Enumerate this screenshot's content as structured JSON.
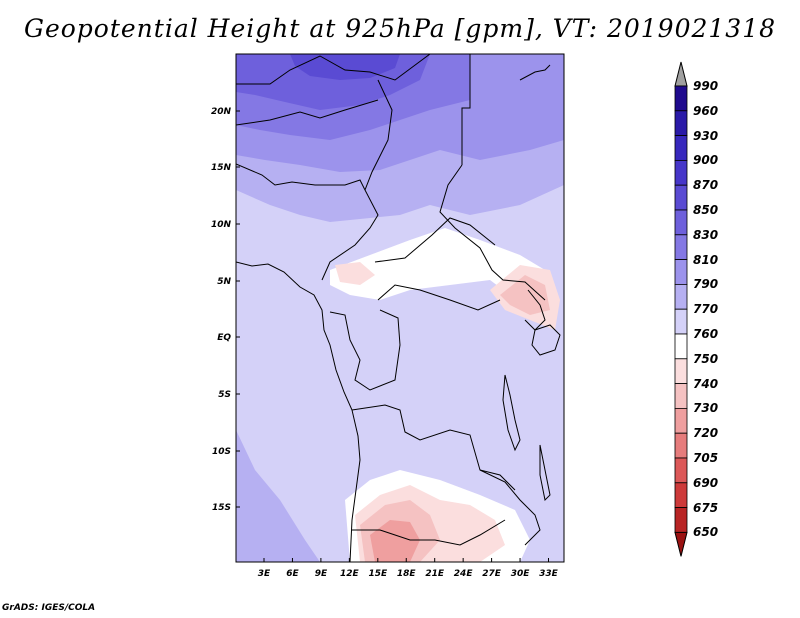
{
  "title": "Geopotential Height at 925hPa [gpm], VT: 2019021318",
  "credit": "GrADS: IGES/COLA",
  "lat_labels": [
    "20N",
    "15N",
    "10N",
    "5N",
    "EQ",
    "5S",
    "10S",
    "15S"
  ],
  "lon_labels": [
    "3E",
    "6E",
    "9E",
    "12E",
    "15E",
    "18E",
    "21E",
    "24E",
    "27E",
    "30E",
    "33E"
  ],
  "colorbar": {
    "levels": [
      "990",
      "960",
      "930",
      "900",
      "870",
      "850",
      "830",
      "810",
      "790",
      "770",
      "760",
      "750",
      "740",
      "730",
      "720",
      "705",
      "690",
      "675",
      "650"
    ],
    "colors": [
      "#1f0a8e",
      "#2a1aa8",
      "#3728bd",
      "#4636c9",
      "#5a4bd3",
      "#6e60dc",
      "#8478e4",
      "#9c93ec",
      "#b6b0f2",
      "#d4d1f8",
      "#ffffff",
      "#fbdede",
      "#f5c2c2",
      "#ef9f9f",
      "#e67c7c",
      "#dc5858",
      "#cd3a3a",
      "#b82424",
      "#9a1212"
    ]
  },
  "field_colors": {
    "c770": "#d4d1f8",
    "c790": "#b6b0f2",
    "c810": "#9c93ec",
    "c830": "#8478e4",
    "c850": "#6e60dc",
    "c870": "#5a4bd3",
    "c760": "#ffffff",
    "c750": "#fbdede",
    "c740": "#f5c2c2",
    "c730": "#ef9f9f"
  }
}
